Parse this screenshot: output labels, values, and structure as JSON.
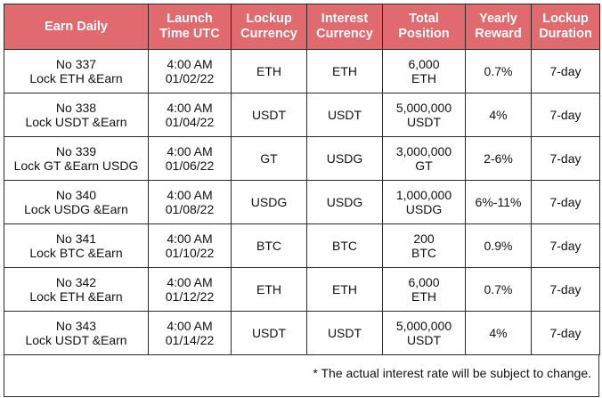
{
  "headers": [
    [
      "Earn Daily"
    ],
    [
      "Launch",
      "Time UTC"
    ],
    [
      "Lockup",
      "Currency"
    ],
    [
      "Interest",
      "Currency"
    ],
    [
      "Total",
      "Position"
    ],
    [
      "Yearly",
      "Reward"
    ],
    [
      "Lockup",
      "Duration"
    ]
  ],
  "rows": [
    {
      "earn": [
        "No 337",
        "Lock ETH &Earn"
      ],
      "launch": [
        "4:00 AM",
        "01/02/22"
      ],
      "lockup": "ETH",
      "interest": "ETH",
      "position": [
        "6,000",
        "ETH"
      ],
      "reward": "0.7%",
      "duration": "7-day"
    },
    {
      "earn": [
        "No 338",
        "Lock USDT &Earn"
      ],
      "launch": [
        "4:00 AM",
        "01/04/22"
      ],
      "lockup": "USDT",
      "interest": "USDT",
      "position": [
        "5,000,000",
        "USDT"
      ],
      "reward": "4%",
      "duration": "7-day"
    },
    {
      "earn": [
        "No 339",
        "Lock GT &Earn USDG"
      ],
      "launch": [
        "4:00 AM",
        "01/06/22"
      ],
      "lockup": "GT",
      "interest": "USDG",
      "position": [
        "3,000,000",
        "GT"
      ],
      "reward": "2-6%",
      "duration": "7-day"
    },
    {
      "earn": [
        "No 340",
        "Lock USDG &Earn"
      ],
      "launch": [
        "4:00 AM",
        "01/08/22"
      ],
      "lockup": "USDG",
      "interest": "USDG",
      "position": [
        "1,000,000",
        "USDG"
      ],
      "reward": "6%-11%",
      "duration": "7-day"
    },
    {
      "earn": [
        "No 341",
        "Lock BTC &Earn"
      ],
      "launch": [
        "4:00 AM",
        "01/10/22"
      ],
      "lockup": "BTC",
      "interest": "BTC",
      "position": [
        "200",
        "BTC"
      ],
      "reward": "0.9%",
      "duration": "7-day"
    },
    {
      "earn": [
        "No 342",
        "Lock ETH &Earn"
      ],
      "launch": [
        "4:00 AM",
        "01/12/22"
      ],
      "lockup": "ETH",
      "interest": "ETH",
      "position": [
        "6,000",
        "ETH"
      ],
      "reward": "0.7%",
      "duration": "7-day"
    },
    {
      "earn": [
        "No 343",
        "Lock USDT &Earn"
      ],
      "launch": [
        "4:00 AM",
        "01/14/22"
      ],
      "lockup": "USDT",
      "interest": "USDT",
      "position": [
        "5,000,000",
        "USDT"
      ],
      "reward": "4%",
      "duration": "7-day"
    }
  ],
  "footnote": "* The actual interest rate will be subject to change.",
  "colors": {
    "header_bg": "#e06a6e",
    "header_text": "#ffffff",
    "border": "#2a2a2a"
  }
}
